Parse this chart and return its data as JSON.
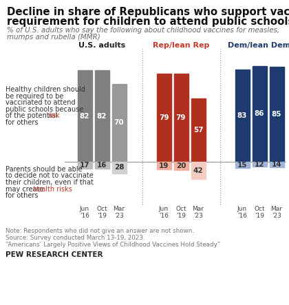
{
  "title_line1": "Decline in share of Republicans who support vaccine",
  "title_line2": "requirement for children to attend public schools",
  "subtitle_line1": "% of U.S. adults who say the following about childhood vaccines for measles,",
  "subtitle_line2": "mumps and rubella (MMR)",
  "group_labels": [
    "U.S. adults",
    "Rep/lean Rep",
    "Dem/lean Dem"
  ],
  "group_label_colors": [
    "#222222",
    "#c0392b",
    "#1e3a6e"
  ],
  "date_labels": [
    "Jun\n'16",
    "Oct\n'19",
    "Mar\n'23"
  ],
  "row1_lines": [
    "Healthy children should",
    "be required to be",
    "vaccinated to attend",
    "public schools because",
    "of the potential risk",
    "for others"
  ],
  "row1_risk_line_idx": 4,
  "row1_risk_pre": "of the potential ",
  "row2_lines": [
    "Parents should be able",
    "to decide not to vaccinate",
    "their children, even if that",
    "may create health risks",
    "for others"
  ],
  "row2_healthrisks_line_idx": 3,
  "row1_values": [
    [
      82,
      82,
      70
    ],
    [
      79,
      79,
      57
    ],
    [
      83,
      86,
      85
    ]
  ],
  "row2_values": [
    [
      17,
      16,
      28
    ],
    [
      19,
      20,
      42
    ],
    [
      15,
      12,
      14
    ]
  ],
  "bar_colors_row1": [
    [
      "#808080",
      "#808080",
      "#999999"
    ],
    [
      "#b03020",
      "#b03020",
      "#b03020"
    ],
    [
      "#1e3a6e",
      "#1e3a6e",
      "#1e3a6e"
    ]
  ],
  "bar_colors_row2": [
    [
      "#bbbbbb",
      "#bbbbbb",
      "#d0d0d0"
    ],
    [
      "#f0b0a0",
      "#f0b0a0",
      "#f5ccc0"
    ],
    [
      "#a0b4d8",
      "#a0b4d8",
      "#a0b4d8"
    ]
  ],
  "bar_text_colors_row1": [
    [
      "white",
      "white",
      "white"
    ],
    [
      "white",
      "white",
      "white"
    ],
    [
      "white",
      "white",
      "white"
    ]
  ],
  "bar_text_colors_row2": [
    [
      "#333333",
      "#333333",
      "#333333"
    ],
    [
      "#333333",
      "#333333",
      "#333333"
    ],
    [
      "#333333",
      "#333333",
      "#333333"
    ]
  ],
  "note_lines": [
    "Note: Respondents who did not give an answer are not shown.",
    "Source: Survey conducted March 13-19, 2023.",
    "“Americans’ Largely Positive Views of Childhood Vaccines Hold Steady”"
  ],
  "footer": "PEW RESEARCH CENTER",
  "bg_color": "#ffffff",
  "divider_color": "#999999",
  "label_color": "#333333",
  "note_color": "#777777"
}
